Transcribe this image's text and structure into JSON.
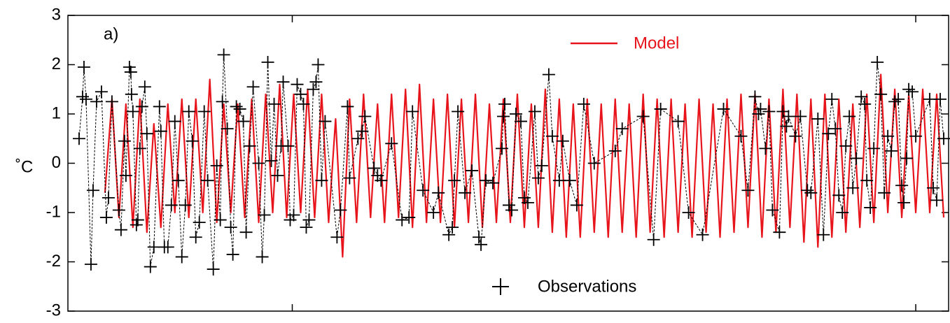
{
  "chart_data": {
    "type": "line",
    "panel_label": "a)",
    "y_label": "˚C",
    "xlim": [
      97,
      1357
    ],
    "xticks": [
      418,
      1310
    ],
    "ylim": [
      -3,
      3
    ],
    "yticks": [
      -3,
      -2,
      -1,
      0,
      1,
      2,
      3
    ],
    "series": [
      {
        "name": "Model",
        "color": "#e8141b",
        "style": "solid",
        "x": [
          150,
          160,
          170,
          180,
          190,
          200,
          210,
          220,
          230,
          240,
          250,
          260,
          270,
          280,
          290,
          300,
          310,
          320,
          330,
          340,
          350,
          360,
          370,
          380,
          390,
          400,
          410,
          420,
          430,
          440,
          450,
          460,
          470,
          480,
          490,
          500,
          510,
          520,
          530,
          540,
          550,
          560,
          570,
          580,
          590,
          600,
          610,
          620,
          630,
          640,
          650,
          660,
          670,
          680,
          690,
          700,
          710,
          720,
          730,
          740,
          750,
          760,
          770,
          780,
          790,
          800,
          810,
          820,
          830,
          840,
          850,
          860,
          870,
          880,
          890,
          900,
          910,
          920,
          930,
          940,
          950,
          960,
          970,
          980,
          990,
          1000,
          1010,
          1020,
          1030,
          1040,
          1050,
          1060,
          1070,
          1080,
          1090,
          1100,
          1110,
          1120,
          1130,
          1140,
          1150,
          1160,
          1170,
          1180,
          1190,
          1200,
          1210,
          1220,
          1230,
          1240,
          1250,
          1260,
          1270,
          1280,
          1290,
          1300,
          1310,
          1320,
          1330,
          1340,
          1350
        ],
        "values": [
          -0.6,
          1.3,
          -1.1,
          1.2,
          -1.3,
          1.3,
          -1.4,
          0.8,
          -1.3,
          1.2,
          -1.0,
          1.3,
          -1.1,
          1.3,
          -1.0,
          1.7,
          -1.2,
          1.2,
          -1.0,
          1.2,
          -1.1,
          1.3,
          -1.2,
          1.4,
          -1.0,
          1.6,
          -1.1,
          1.4,
          -1.0,
          1.5,
          -1.1,
          1.4,
          -1.2,
          0.9,
          -1.9,
          1.3,
          -1.2,
          1.4,
          -1.1,
          1.2,
          -1.2,
          1.4,
          -1.1,
          1.5,
          -1.3,
          1.6,
          -1.2,
          1.3,
          -1.2,
          1.4,
          -1.3,
          1.3,
          -1.2,
          1.4,
          -1.3,
          1.2,
          -1.2,
          1.3,
          -1.2,
          1.4,
          -1.3,
          1.2,
          -1.3,
          1.5,
          -1.4,
          1.3,
          -1.5,
          1.2,
          -1.5,
          1.3,
          -1.4,
          1.2,
          -1.5,
          1.3,
          -1.4,
          1.2,
          -1.5,
          1.4,
          -1.4,
          1.3,
          -1.5,
          1.3,
          -1.4,
          1.2,
          -1.5,
          1.3,
          -1.4,
          1.2,
          -1.5,
          1.3,
          -1.4,
          1.4,
          -1.3,
          1.4,
          -1.5,
          1.3,
          -1.4,
          1.5,
          -1.3,
          1.4,
          -1.6,
          1.3,
          -1.7,
          1.4,
          -1.5,
          1.3,
          -1.4,
          1.2,
          -1.3,
          1.4,
          -1.2,
          1.8,
          -1.0,
          1.5,
          -1.1,
          1.4,
          -1.0,
          1.5,
          -1.0,
          1.4,
          -1.1
        ]
      },
      {
        "name": "Observations",
        "color": "#000000",
        "style": "dashed-plus",
        "x": [
          113,
          118,
          120,
          123,
          130,
          133,
          138,
          145,
          152,
          155,
          160,
          170,
          173,
          178,
          180,
          185,
          187,
          188,
          190,
          195,
          197,
          200,
          203,
          207,
          210,
          215,
          220,
          228,
          230,
          235,
          240,
          245,
          250,
          255,
          260,
          265,
          270,
          275,
          280,
          285,
          292,
          297,
          305,
          310,
          315,
          318,
          320,
          325,
          330,
          333,
          338,
          343,
          348,
          352,
          357,
          362,
          370,
          375,
          378,
          383,
          388,
          392,
          397,
          402,
          405,
          412,
          415,
          420,
          425,
          430,
          434,
          438,
          442,
          448,
          452,
          455,
          460,
          465,
          482,
          487,
          497,
          500,
          512,
          518,
          522,
          535,
          540,
          545,
          560,
          575,
          585,
          590,
          605,
          620,
          627,
          642,
          647,
          650,
          655,
          665,
          675,
          685,
          688,
          695,
          705,
          718,
          720,
          722,
          728,
          732,
          738,
          745,
          750,
          755,
          765,
          770,
          775,
          785,
          790,
          800,
          805,
          815,
          825,
          835,
          850,
          880,
          890,
          920,
          935,
          945,
          970,
          985,
          1005,
          1035,
          1060,
          1070,
          1080,
          1085,
          1088,
          1095,
          1100,
          1105,
          1115,
          1120,
          1125,
          1128,
          1138,
          1145,
          1155,
          1160,
          1170,
          1178,
          1185,
          1190,
          1195,
          1200,
          1205,
          1210,
          1215,
          1220,
          1225,
          1232,
          1237,
          1240,
          1245,
          1250,
          1255,
          1260,
          1265,
          1270,
          1275,
          1280,
          1285,
          1290,
          1293,
          1297,
          1300,
          1305,
          1310,
          1330,
          1335,
          1340,
          1345,
          1350
        ],
        "values": [
          0.5,
          1.35,
          1.95,
          1.3,
          -2.05,
          -0.55,
          1.25,
          1.45,
          -1.1,
          -0.7,
          1.25,
          -0.95,
          -1.35,
          0.45,
          -0.25,
          1.95,
          1.85,
          1.4,
          1.05,
          -1.25,
          -1.15,
          0.3,
          1.15,
          1.55,
          0.6,
          -2.1,
          -1.7,
          1.15,
          0.65,
          -1.7,
          -1.7,
          -0.85,
          0.85,
          -0.35,
          -1.9,
          -0.85,
          1.05,
          0.45,
          -1.5,
          -1.2,
          1.05,
          -0.35,
          -2.15,
          -0.05,
          -1.15,
          1.25,
          2.2,
          0.7,
          -1.3,
          -1.85,
          1.15,
          1.1,
          0.85,
          -1.4,
          0.35,
          1.55,
          0.0,
          -1.9,
          -1.05,
          2.05,
          0.05,
          1.2,
          -0.25,
          0.35,
          1.65,
          0.35,
          -1.15,
          -1.05,
          1.6,
          1.4,
          1.2,
          -1.3,
          -1.15,
          1.5,
          1.65,
          2.0,
          -0.35,
          0.85,
          -1.5,
          -0.95,
          1.15,
          -0.3,
          0.5,
          0.65,
          0.95,
          -0.1,
          -0.25,
          -0.35,
          0.4,
          -1.15,
          -1.1,
          1.05,
          -0.55,
          -1.0,
          -0.6,
          -1.45,
          -1.3,
          -0.35,
          1.05,
          -0.6,
          -0.15,
          -1.5,
          -1.65,
          -0.35,
          -0.4,
          0.3,
          0.95,
          1.2,
          -0.85,
          -0.95,
          1.0,
          0.85,
          -0.7,
          -0.8,
          1.05,
          -0.3,
          -0.05,
          1.8,
          0.55,
          -0.35,
          0.45,
          -0.35,
          -0.85,
          1.2,
          0.0,
          0.25,
          0.7,
          0.95,
          -1.55,
          1.1,
          0.85,
          -1.0,
          -1.45,
          1.1,
          0.55,
          -0.55,
          1.35,
          1.0,
          1.1,
          0.3,
          1.05,
          -0.95,
          -1.4,
          1.05,
          0.75,
          0.95,
          0.55,
          0.95,
          -0.55,
          -0.6,
          0.9,
          -1.45,
          0.6,
          1.3,
          0.7,
          -0.65,
          -1.0,
          0.35,
          0.95,
          -0.5,
          0.1,
          1.35,
          1.2,
          -0.35,
          -0.9,
          0.3,
          2.05,
          1.4,
          -0.6,
          0.55,
          0.25,
          1.25,
          1.3,
          -0.45,
          -0.8,
          0.1,
          1.5,
          1.45,
          0.55,
          1.3,
          -0.5,
          -0.75,
          1.3,
          0.5
        ]
      }
    ]
  }
}
